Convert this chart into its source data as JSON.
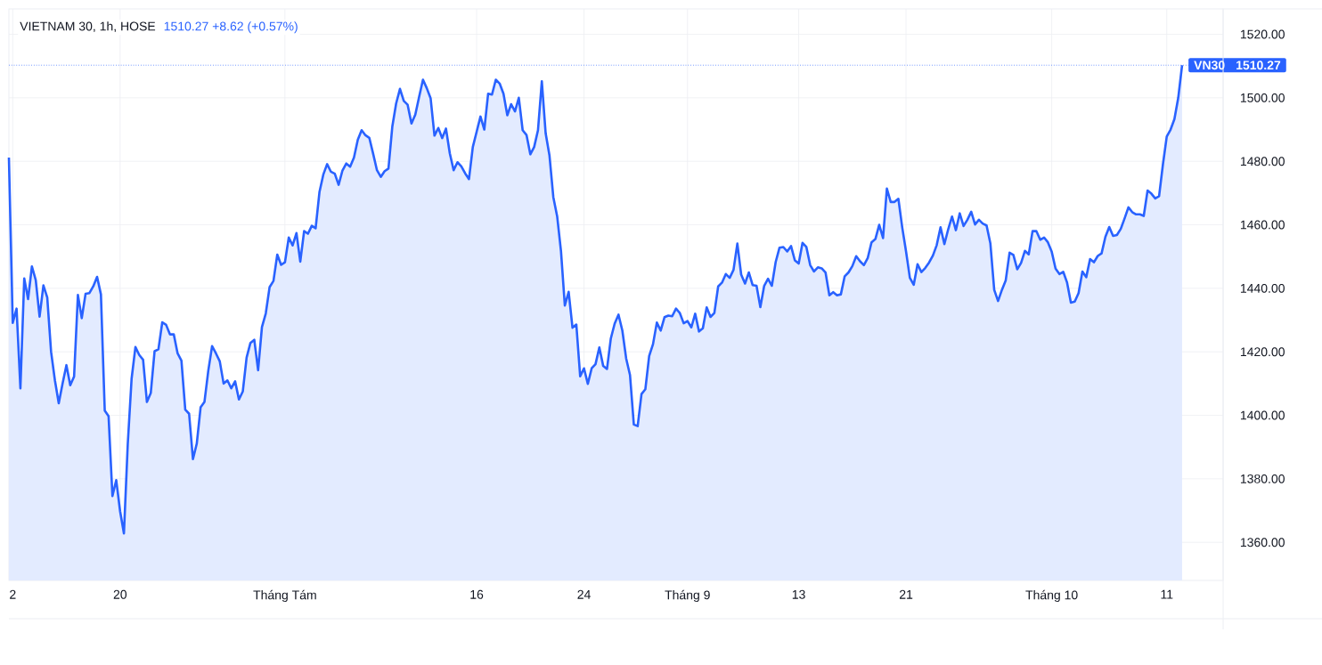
{
  "chart_data": {
    "type": "area",
    "title": "VIETNAM 30, 1h, HOSE",
    "subtitle": "1510.27 +8.62 (+0.57%)",
    "color": "#2962ff",
    "grid": true,
    "categories": [
      null,
      "2",
      null,
      null,
      null,
      null,
      null,
      null,
      null,
      null,
      null,
      null,
      null,
      null,
      null,
      null,
      null,
      null,
      null,
      null,
      null,
      null,
      null,
      null,
      null,
      null,
      null,
      null,
      null,
      "20",
      null,
      null,
      null,
      null,
      null,
      null,
      null,
      null,
      null,
      null,
      null,
      null,
      null,
      null,
      null,
      null,
      null,
      null,
      null,
      null,
      null,
      null,
      null,
      null,
      null,
      null,
      null,
      null,
      null,
      null,
      null,
      null,
      null,
      null,
      null,
      null,
      null,
      null,
      null,
      null,
      null,
      null,
      "Tháng Tám",
      null,
      null,
      null,
      null,
      null,
      null,
      null,
      null,
      null,
      null,
      null,
      null,
      null,
      null,
      null,
      null,
      null,
      null,
      null,
      null,
      null,
      null,
      null,
      null,
      null,
      null,
      null,
      null,
      null,
      null,
      null,
      null,
      null,
      null,
      null,
      null,
      null,
      null,
      null,
      null,
      null,
      null,
      null,
      null,
      null,
      null,
      null,
      null,
      null,
      "16",
      null,
      null,
      null,
      null,
      null,
      null,
      null,
      null,
      null,
      null,
      null,
      null,
      null,
      null,
      null,
      null,
      null,
      null,
      null,
      null,
      null,
      null,
      null,
      null,
      null,
      null,
      null,
      "24",
      null,
      null,
      null,
      null,
      null,
      null,
      null,
      null,
      null,
      null,
      null,
      null,
      null,
      null,
      null,
      null,
      null,
      null,
      null,
      null,
      null,
      null,
      null,
      null,
      null,
      null,
      "Tháng 9",
      null,
      null,
      null,
      null,
      null,
      null,
      null,
      null,
      null,
      null,
      null,
      null,
      null,
      null,
      null,
      null,
      null,
      null,
      null,
      null,
      null,
      null,
      null,
      null,
      null,
      null,
      null,
      null,
      "13",
      null,
      null,
      null,
      null,
      null,
      null,
      null,
      null,
      null,
      null,
      null,
      null,
      null,
      null,
      null,
      null,
      null,
      null,
      null,
      null,
      null,
      null,
      null,
      null,
      null,
      null,
      null,
      "21",
      null,
      null,
      null,
      null,
      null,
      null,
      null,
      null,
      null,
      null,
      null,
      null,
      null,
      null,
      null,
      null,
      null,
      null,
      null,
      null,
      null,
      null,
      null,
      null,
      null,
      null,
      null,
      null,
      null,
      null,
      null,
      null,
      null,
      null,
      null,
      null,
      null,
      "Tháng 10",
      null,
      null,
      null,
      null,
      null,
      null,
      null,
      null,
      null,
      null,
      null,
      null,
      null,
      null,
      null,
      null,
      null,
      null,
      null,
      null,
      null,
      null,
      null,
      null,
      null,
      null,
      null,
      null,
      null,
      "11",
      null,
      null,
      null,
      null
    ],
    "values": [
      1481.2,
      1429.1,
      1433.6,
      1408.5,
      1443.1,
      1436.6,
      1446.9,
      1442.6,
      1431.1,
      1440.9,
      1437.1,
      1420.0,
      1411.0,
      1403.8,
      1410.0,
      1415.8,
      1409.5,
      1412.2,
      1437.9,
      1430.6,
      1438.3,
      1438.5,
      1440.6,
      1443.6,
      1438.1,
      1401.5,
      1399.7,
      1374.6,
      1379.6,
      1369.8,
      1362.8,
      1390.9,
      1411.5,
      1421.5,
      1419.0,
      1417.5,
      1404.2,
      1407.0,
      1420.2,
      1420.8,
      1429.3,
      1428.5,
      1425.5,
      1425.5,
      1419.5,
      1417.2,
      1401.8,
      1400.5,
      1386.2,
      1391.1,
      1402.5,
      1404.2,
      1414.0,
      1421.8,
      1419.5,
      1417.0,
      1410.0,
      1411.0,
      1408.5,
      1410.7,
      1405.0,
      1407.5,
      1418.2,
      1422.8,
      1423.8,
      1414.2,
      1427.8,
      1432.1,
      1440.4,
      1442.3,
      1450.6,
      1447.4,
      1448.2,
      1456.0,
      1453.5,
      1457.4,
      1448.4,
      1458.0,
      1457.2,
      1459.7,
      1458.9,
      1470.3,
      1475.8,
      1479.1,
      1476.7,
      1476.1,
      1472.6,
      1477.1,
      1479.3,
      1478.3,
      1481.2,
      1486.8,
      1489.8,
      1488.2,
      1487.4,
      1482.4,
      1477.2,
      1475.1,
      1476.9,
      1477.7,
      1490.9,
      1498.2,
      1502.8,
      1499.0,
      1497.8,
      1491.9,
      1494.7,
      1500.3,
      1505.7,
      1503.0,
      1499.8,
      1488.1,
      1490.5,
      1487.3,
      1490.3,
      1482.5,
      1477.2,
      1479.7,
      1478.4,
      1476.2,
      1474.4,
      1484.5,
      1489.3,
      1494.1,
      1490.0,
      1501.3,
      1501.0,
      1505.7,
      1504.5,
      1501.3,
      1494.5,
      1498.0,
      1495.7,
      1500.0,
      1489.8,
      1488.3,
      1482.2,
      1484.5,
      1489.8,
      1505.2,
      1488.8,
      1481.8,
      1468.7,
      1462.7,
      1451.7,
      1434.6,
      1438.9,
      1427.6,
      1428.6,
      1412.3,
      1414.8,
      1409.9,
      1414.8,
      1416.1,
      1421.4,
      1415.6,
      1414.6,
      1424.2,
      1428.9,
      1431.7,
      1426.7,
      1417.9,
      1412.7,
      1397.1,
      1396.6,
      1406.7,
      1408.2,
      1418.7,
      1422.4,
      1429.2,
      1426.7,
      1430.9,
      1431.4,
      1431.2,
      1433.6,
      1432.2,
      1429.0,
      1429.7,
      1427.7,
      1432.0,
      1426.4,
      1427.4,
      1434.0,
      1431.0,
      1432.2,
      1440.6,
      1441.8,
      1444.5,
      1443.3,
      1445.8,
      1454.1,
      1444.3,
      1441.5,
      1445.0,
      1441.0,
      1440.8,
      1434.1,
      1440.8,
      1443.0,
      1440.8,
      1448.3,
      1452.8,
      1453.0,
      1451.6,
      1453.3,
      1448.8,
      1447.8,
      1454.3,
      1453.0,
      1447.3,
      1445.3,
      1446.6,
      1446.3,
      1445.0,
      1437.8,
      1438.8,
      1437.8,
      1438.1,
      1443.8,
      1445.0,
      1447.0,
      1450.1,
      1448.5,
      1447.3,
      1449.5,
      1454.5,
      1455.5,
      1460.0,
      1455.8,
      1471.4,
      1467.2,
      1467.2,
      1468.2,
      1459.2,
      1451.6,
      1443.3,
      1441.1,
      1447.6,
      1445.1,
      1446.4,
      1448.1,
      1450.3,
      1453.6,
      1459.2,
      1453.9,
      1458.6,
      1462.6,
      1458.3,
      1463.6,
      1459.6,
      1461.6,
      1464.1,
      1460.1,
      1461.6,
      1460.4,
      1459.8,
      1454.1,
      1439.5,
      1436.0,
      1439.5,
      1442.5,
      1451.2,
      1450.5,
      1446.0,
      1448.0,
      1451.8,
      1450.7,
      1458.0,
      1458.0,
      1455.3,
      1456.0,
      1454.5,
      1451.5,
      1446.2,
      1444.5,
      1445.2,
      1441.8,
      1435.5,
      1435.8,
      1438.5,
      1445.3,
      1443.5,
      1449.2,
      1448.2,
      1450.2,
      1451.0,
      1456.2,
      1459.3,
      1456.5,
      1456.8,
      1458.7,
      1462.0,
      1465.5,
      1464.0,
      1463.3,
      1463.3,
      1462.8,
      1470.8,
      1469.8,
      1468.3,
      1469.0,
      1479.0,
      1487.8,
      1490.0,
      1493.3,
      1500.0,
      1510.27
    ],
    "ylim": [
      1348,
      1528
    ],
    "yticks": [
      {
        "value": 1360,
        "label": "1360.00"
      },
      {
        "value": 1380,
        "label": "1380.00"
      },
      {
        "value": 1400,
        "label": "1400.00"
      },
      {
        "value": 1420,
        "label": "1420.00"
      },
      {
        "value": 1440,
        "label": "1440.00"
      },
      {
        "value": 1460,
        "label": "1460.00"
      },
      {
        "value": 1480,
        "label": "1480.00"
      },
      {
        "value": 1500,
        "label": "1500.00"
      },
      {
        "value": 1520,
        "label": "1520.00"
      }
    ],
    "ref_lines": [
      {
        "axis": "y",
        "value": 1510.27,
        "label": "VN30",
        "color": "#2962ff",
        "line_style": "dotted"
      }
    ],
    "annotations": [
      "1510.27"
    ]
  }
}
